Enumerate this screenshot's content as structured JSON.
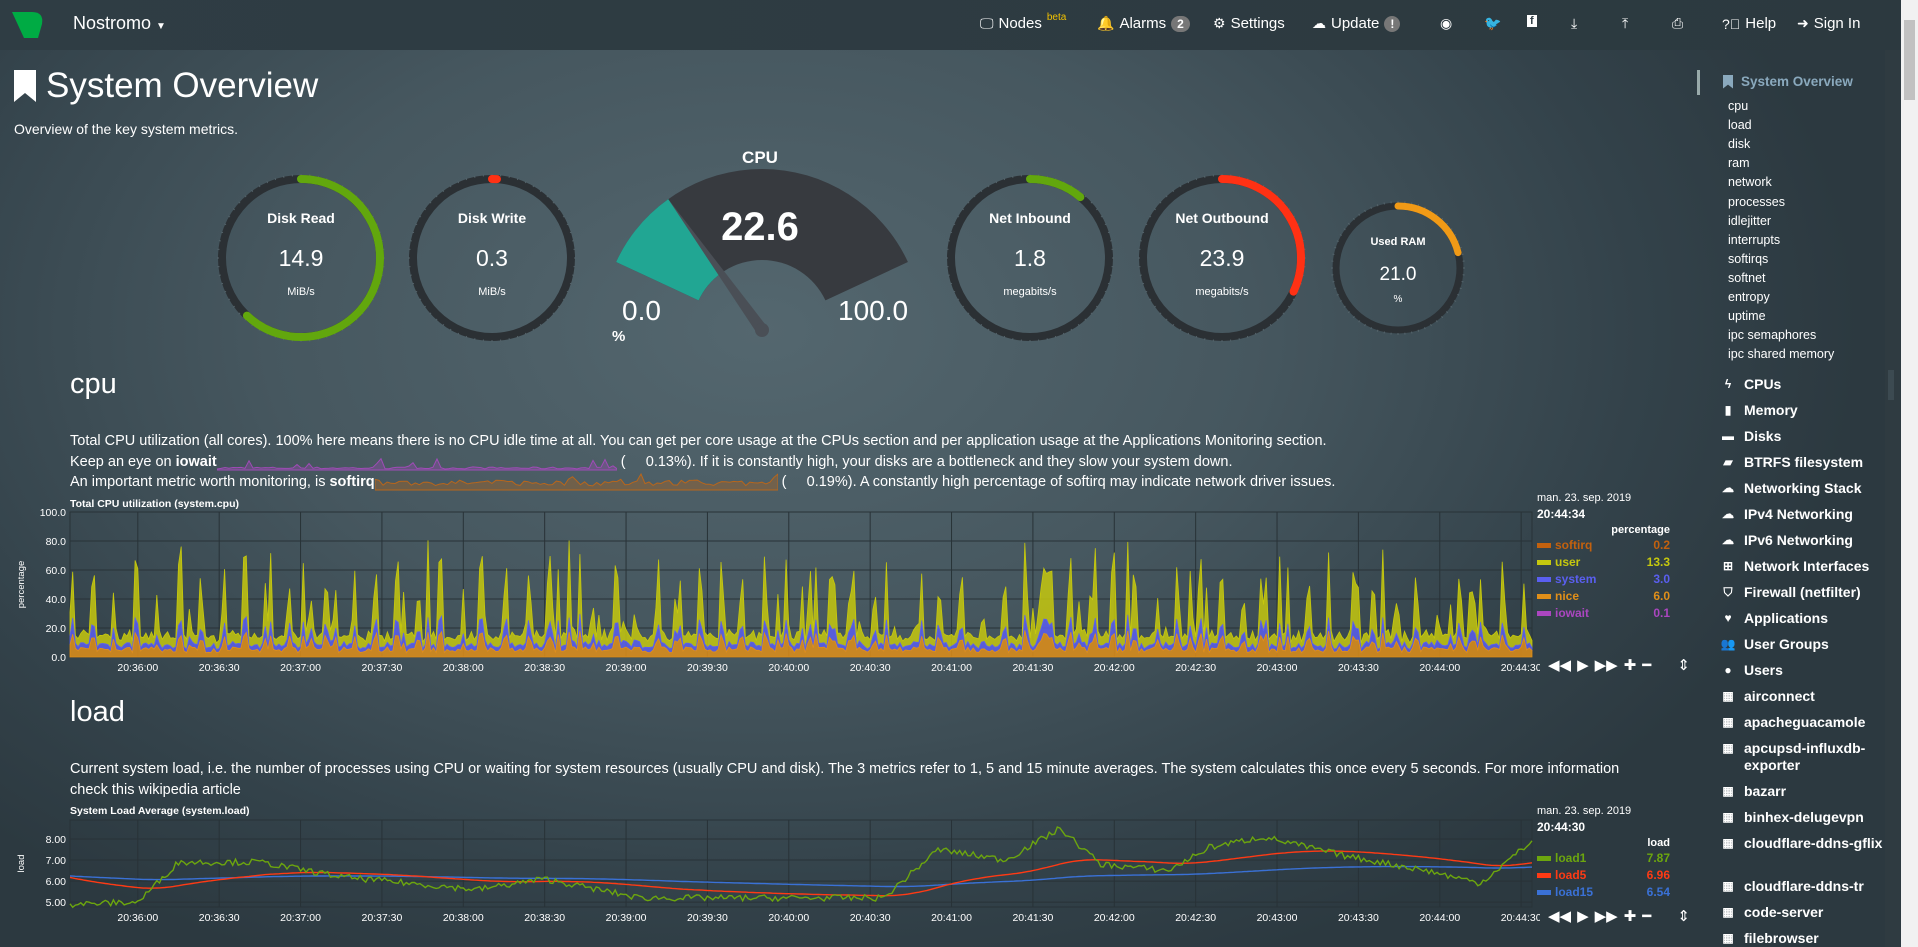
{
  "topbar": {
    "brand": "Nostromo",
    "nodes": "Nodes",
    "nodes_sup": "beta",
    "alarms": "Alarms",
    "alarms_count": "2",
    "settings": "Settings",
    "update": "Update",
    "update_badge": "!",
    "help": "Help",
    "signin": "Sign In"
  },
  "page": {
    "title": "System Overview",
    "subtitle": "Overview of the key system metrics."
  },
  "gauges": [
    {
      "title": "Disk Read",
      "value": "14.9",
      "unit": "MiB/s",
      "fill": 0.62,
      "color": "#62a70d"
    },
    {
      "title": "Disk Write",
      "value": "0.3",
      "unit": "MiB/s",
      "fill": 0.01,
      "color": "#ff3114"
    },
    {
      "title": "Net Inbound",
      "value": "1.8",
      "unit": "megabits/s",
      "fill": 0.11,
      "color": "#62a70d"
    },
    {
      "title": "Net Outbound",
      "value": "23.9",
      "unit": "megabits/s",
      "fill": 0.32,
      "color": "#ff3114"
    },
    {
      "title": "Used RAM",
      "value": "21.0",
      "unit": "%",
      "fill": 0.21,
      "color": "#f19a16"
    }
  ],
  "cpu_gauge": {
    "title": "CPU",
    "value": "22.6",
    "min": "0.0",
    "max": "100.0",
    "unit": "%",
    "fill": 0.226,
    "color": "#21a693"
  },
  "cpu_section": {
    "heading": "cpu",
    "line1": "Total CPU utilization (all cores). 100% here means there is no CPU idle time at all. You can get per core usage at the CPUs section and per application usage at the Applications Monitoring section.",
    "line2_pre": "Keep an eye on ",
    "line2_bold": "iowait",
    "line2_val": "0.13%",
    "line2_post": "). If it is constantly high, your disks are a bottleneck and they slow your system down.",
    "line3_pre": "An important metric worth monitoring, is ",
    "line3_bold": "softirq",
    "line3_val": "0.19%",
    "line3_post": "). A constantly high percentage of softirq may indicate network driver issues.",
    "paren": "("
  },
  "load_section": {
    "heading": "load",
    "text": "Current system load, i.e. the number of processes using CPU or waiting for system resources (usually CPU and disk). The 3 metrics refer to 1, 5 and 15 minute averages. The system calculates this once every 5 seconds. For more information check this ",
    "link": "wikipedia article"
  },
  "chart_data": [
    {
      "type": "area",
      "title": "Total CPU utilization (system.cpu)",
      "ylabel": "percentage",
      "ylim": [
        0,
        100
      ],
      "yticks": [
        "100.0",
        "80.0",
        "60.0",
        "40.0",
        "20.0",
        "0.0"
      ],
      "xticks": [
        "20:36:00",
        "20:36:30",
        "20:37:00",
        "20:37:30",
        "20:38:00",
        "20:38:30",
        "20:39:00",
        "20:39:30",
        "20:40:00",
        "20:40:30",
        "20:41:00",
        "20:41:30",
        "20:42:00",
        "20:42:30",
        "20:43:00",
        "20:43:30",
        "20:44:00",
        "20:44:30"
      ],
      "date": "man. 23. sep. 2019",
      "time": "20:44:34",
      "units": "percentage",
      "series": [
        {
          "name": "softirq",
          "value": "0.2",
          "color": "#c3610e"
        },
        {
          "name": "user",
          "value": "13.3",
          "color": "#c6c80e"
        },
        {
          "name": "system",
          "value": "3.0",
          "color": "#5a5ff0"
        },
        {
          "name": "nice",
          "value": "6.0",
          "color": "#e08f19"
        },
        {
          "name": "iowait",
          "value": "0.1",
          "color": "#ab46c0"
        }
      ]
    },
    {
      "type": "line",
      "title": "System Load Average (system.load)",
      "ylabel": "load",
      "ylim": [
        4.77,
        8.9
      ],
      "yticks": [
        "8.00",
        "7.00",
        "6.00",
        "5.00"
      ],
      "xticks": [
        "20:36:00",
        "20:36:30",
        "20:37:00",
        "20:37:30",
        "20:38:00",
        "20:38:30",
        "20:39:00",
        "20:39:30",
        "20:40:00",
        "20:40:30",
        "20:41:00",
        "20:41:30",
        "20:42:00",
        "20:42:30",
        "20:43:00",
        "20:43:30",
        "20:44:00",
        "20:44:30"
      ],
      "date": "man. 23. sep. 2019",
      "time": "20:44:30",
      "units": "load",
      "series": [
        {
          "name": "load1",
          "value": "7.87",
          "color": "#6ca60e"
        },
        {
          "name": "load5",
          "value": "6.96",
          "color": "#ff3a14"
        },
        {
          "name": "load15",
          "value": "6.54",
          "color": "#3a71d6"
        }
      ]
    }
  ],
  "sidebar": {
    "active": "System Overview",
    "sub": [
      "cpu",
      "load",
      "disk",
      "ram",
      "network",
      "processes",
      "idlejitter",
      "interrupts",
      "softirqs",
      "softnet",
      "entropy",
      "uptime",
      "ipc semaphores",
      "ipc shared memory"
    ],
    "main": [
      {
        "label": "CPUs",
        "icon": "bolt-icon",
        "glyph": "ϟ"
      },
      {
        "label": "Memory",
        "icon": "memory-icon",
        "glyph": "▮"
      },
      {
        "label": "Disks",
        "icon": "hdd-icon",
        "glyph": "▬"
      },
      {
        "label": "BTRFS filesystem",
        "icon": "folder-open-icon",
        "glyph": "▰"
      },
      {
        "label": "Networking Stack",
        "icon": "cloud-icon",
        "glyph": "☁"
      },
      {
        "label": "IPv4 Networking",
        "icon": "cloud-icon",
        "glyph": "☁"
      },
      {
        "label": "IPv6 Networking",
        "icon": "cloud-icon",
        "glyph": "☁"
      },
      {
        "label": "Network Interfaces",
        "icon": "sitemap-icon",
        "glyph": "⊞"
      },
      {
        "label": "Firewall (netfilter)",
        "icon": "shield-icon",
        "glyph": "⛉"
      },
      {
        "label": "Applications",
        "icon": "heartbeat-icon",
        "glyph": "♥"
      },
      {
        "label": "User Groups",
        "icon": "users-icon",
        "glyph": "👥"
      },
      {
        "label": "Users",
        "icon": "user-icon",
        "glyph": "●"
      },
      {
        "label": "airconnect",
        "icon": "th-icon",
        "glyph": "▦"
      },
      {
        "label": "apacheguacamole",
        "icon": "th-icon",
        "glyph": "▦"
      },
      {
        "label": "apcupsd-influxdb-exporter",
        "icon": "th-icon",
        "glyph": "▦"
      },
      {
        "label": "bazarr",
        "icon": "th-icon",
        "glyph": "▦"
      },
      {
        "label": "binhex-delugevpn",
        "icon": "th-icon",
        "glyph": "▦"
      },
      {
        "label": "cloudflare-ddns-gflix",
        "icon": "th-icon",
        "glyph": "▦"
      },
      {
        "label": "cloudflare-ddns-tr",
        "icon": "th-icon",
        "glyph": "▦"
      },
      {
        "label": "code-server",
        "icon": "th-icon",
        "glyph": "▦"
      },
      {
        "label": "filebrowser",
        "icon": "th-icon",
        "glyph": "▦"
      }
    ]
  }
}
